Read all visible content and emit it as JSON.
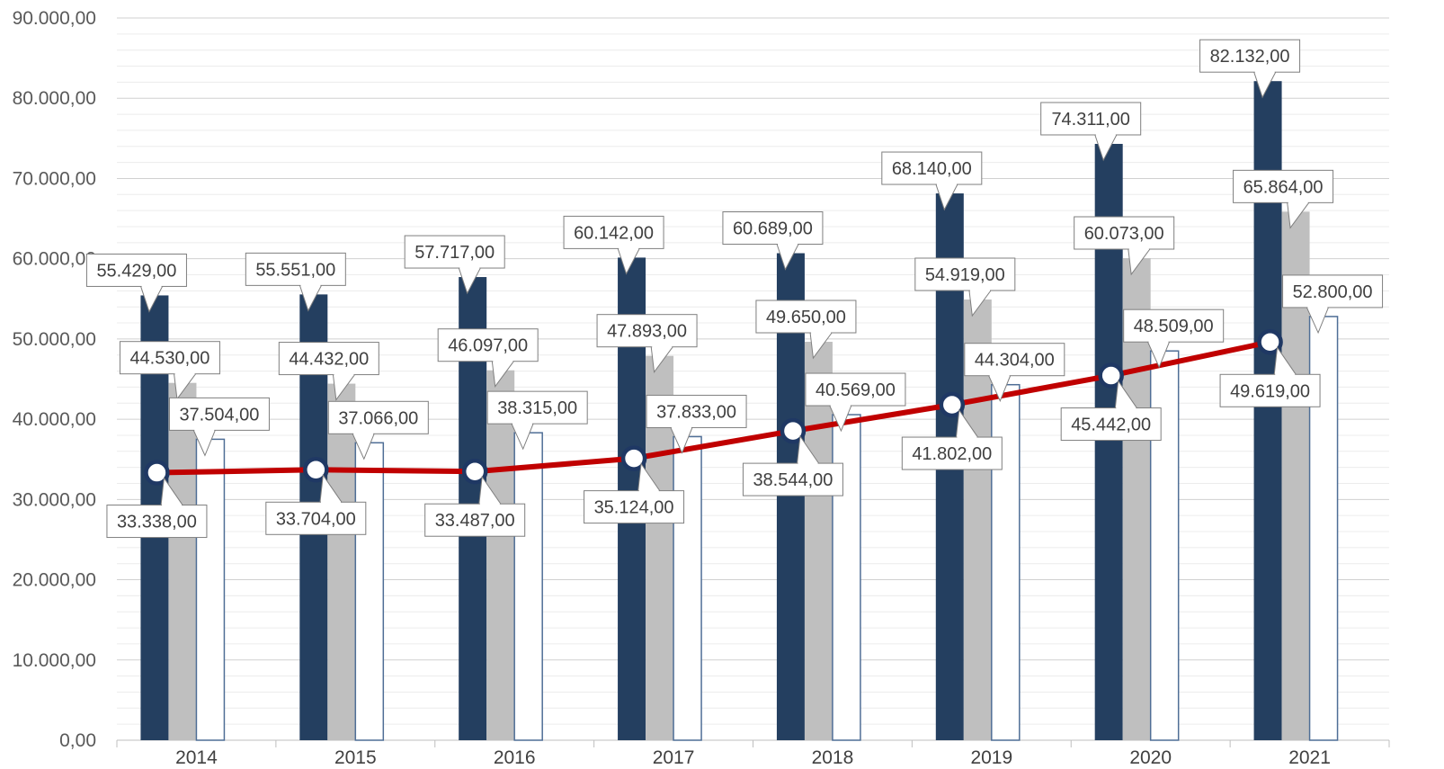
{
  "chart_data": {
    "type": "bar",
    "categories": [
      "2014",
      "2015",
      "2016",
      "2017",
      "2018",
      "2019",
      "2020",
      "2021"
    ],
    "series": [
      {
        "kind": "bar",
        "values": [
          55429,
          55551,
          57717,
          60142,
          60689,
          68140,
          74311,
          82132
        ],
        "labels": [
          "55.429,00",
          "55.551,00",
          "57.717,00",
          "60.142,00",
          "60.689,00",
          "68.140,00",
          "74.311,00",
          "82.132,00"
        ]
      },
      {
        "kind": "bar",
        "values": [
          44530,
          44432,
          46097,
          47893,
          49650,
          54919,
          60073,
          65864
        ],
        "labels": [
          "44.530,00",
          "44.432,00",
          "46.097,00",
          "47.893,00",
          "49.650,00",
          "54.919,00",
          "60.073,00",
          "65.864,00"
        ]
      },
      {
        "kind": "bar",
        "values": [
          37504,
          37066,
          38315,
          37833,
          40569,
          44304,
          48509,
          52800
        ],
        "labels": [
          "37.504,00",
          "37.066,00",
          "38.315,00",
          "37.833,00",
          "40.569,00",
          "44.304,00",
          "48.509,00",
          "52.800,00"
        ]
      },
      {
        "kind": "line",
        "values": [
          33338,
          33704,
          33487,
          35124,
          38544,
          41802,
          45442,
          49619
        ],
        "labels": [
          "33.338,00",
          "33.704,00",
          "33.487,00",
          "35.124,00",
          "38.544,00",
          "41.802,00",
          "45.442,00",
          "49.619,00"
        ]
      }
    ],
    "ylim": [
      0,
      90000
    ],
    "yticks": [
      0,
      10000,
      20000,
      30000,
      40000,
      50000,
      60000,
      70000,
      80000,
      90000
    ],
    "ytick_labels": [
      "0,00",
      "10.000,00",
      "20.000,00",
      "30.000,00",
      "40.000,00",
      "50.000,00",
      "60.000,00",
      "70.000,00",
      "80.000,00",
      "90.000,00"
    ],
    "grid": true,
    "legend": "none",
    "colors": {
      "bar1": "#243F60",
      "bar2": "#BFBFBF",
      "bar3": "#FFFFFF",
      "bar3_border": "#4F6E96",
      "line": "#C00000",
      "marker_fill": "#FFFFFF",
      "marker_stroke": "#1F3864",
      "grid": "#D9D9D9",
      "label_border": "#7F7F7F"
    }
  }
}
